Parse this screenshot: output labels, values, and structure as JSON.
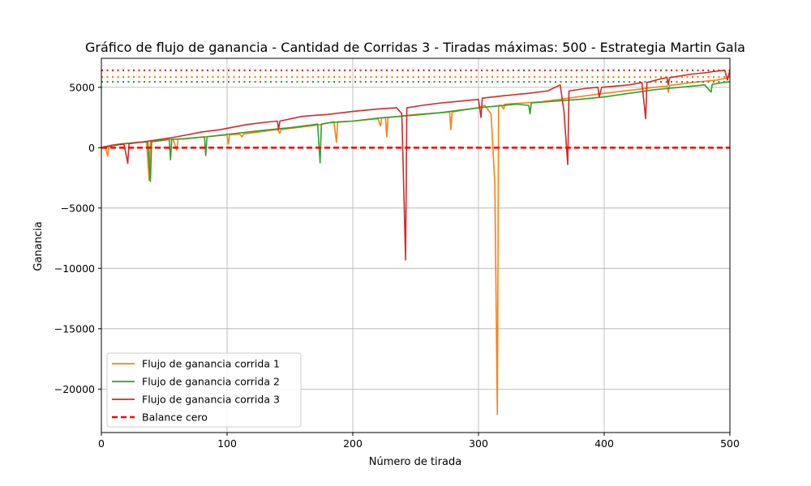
{
  "chart_data": {
    "type": "line",
    "title": "Gráfico de flujo de ganancia - Cantidad de Corridas 3 - Tiradas máximas: 500 - Estrategia Martin Gala",
    "xlabel": "Número de tirada",
    "ylabel": "Ganancia",
    "xlim": [
      0,
      500
    ],
    "ylim": [
      -23600,
      7400
    ],
    "xticks": [
      0,
      100,
      200,
      300,
      400,
      500
    ],
    "xtick_labels": [
      "0",
      "100",
      "200",
      "300",
      "400",
      "500"
    ],
    "yticks": [
      -20000,
      -15000,
      -10000,
      -5000,
      0,
      5000
    ],
    "ytick_labels": [
      "−20000",
      "−15000",
      "−10000",
      "−5000",
      "0",
      "5000"
    ],
    "grid": true,
    "legend_position": "lower-left",
    "series": [
      {
        "name": "Flujo de ganancia corrida 1",
        "color": "#ff7f0e",
        "final_level": 5850,
        "points": [
          [
            0,
            0
          ],
          [
            3,
            100
          ],
          [
            5,
            -700
          ],
          [
            6,
            120
          ],
          [
            15,
            260
          ],
          [
            25,
            400
          ],
          [
            36,
            480
          ],
          [
            38,
            -2700
          ],
          [
            39,
            490
          ],
          [
            50,
            620
          ],
          [
            57,
            700
          ],
          [
            60,
            -200
          ],
          [
            61,
            700
          ],
          [
            80,
            880
          ],
          [
            100,
            1050
          ],
          [
            101,
            300
          ],
          [
            102,
            1060
          ],
          [
            110,
            1120
          ],
          [
            112,
            900
          ],
          [
            113,
            1130
          ],
          [
            140,
            1500
          ],
          [
            142,
            1200
          ],
          [
            143,
            1500
          ],
          [
            174,
            1900
          ],
          [
            185,
            2150
          ],
          [
            187,
            450
          ],
          [
            188,
            2150
          ],
          [
            200,
            2200
          ],
          [
            220,
            2400
          ],
          [
            222,
            1800
          ],
          [
            223,
            2450
          ],
          [
            226,
            2500
          ],
          [
            227,
            900
          ],
          [
            228,
            2500
          ],
          [
            250,
            2750
          ],
          [
            277,
            2950
          ],
          [
            278,
            1500
          ],
          [
            279,
            2950
          ],
          [
            290,
            3150
          ],
          [
            300,
            3300
          ],
          [
            305,
            3500
          ],
          [
            310,
            2800
          ],
          [
            313,
            -3000
          ],
          [
            315,
            -22100
          ],
          [
            316,
            3500
          ],
          [
            318,
            3500
          ],
          [
            320,
            3200
          ],
          [
            321,
            3600
          ],
          [
            350,
            3800
          ],
          [
            400,
            4500
          ],
          [
            440,
            5000
          ],
          [
            450,
            5100
          ],
          [
            451,
            4600
          ],
          [
            452,
            5150
          ],
          [
            470,
            5400
          ],
          [
            480,
            5500
          ],
          [
            490,
            5600
          ],
          [
            498,
            5800
          ],
          [
            500,
            5850
          ]
        ]
      },
      {
        "name": "Flujo de ganancia corrida 2",
        "color": "#2ca02c",
        "final_level": 5450,
        "points": [
          [
            0,
            0
          ],
          [
            8,
            200
          ],
          [
            15,
            300
          ],
          [
            30,
            450
          ],
          [
            37,
            480
          ],
          [
            39,
            -2800
          ],
          [
            40,
            500
          ],
          [
            50,
            620
          ],
          [
            54,
            700
          ],
          [
            55,
            -1000
          ],
          [
            56,
            700
          ],
          [
            65,
            720
          ],
          [
            78,
            850
          ],
          [
            82,
            880
          ],
          [
            83,
            -650
          ],
          [
            84,
            900
          ],
          [
            100,
            1100
          ],
          [
            130,
            1450
          ],
          [
            150,
            1650
          ],
          [
            165,
            1850
          ],
          [
            172,
            1950
          ],
          [
            174,
            -1250
          ],
          [
            175,
            1950
          ],
          [
            180,
            2050
          ],
          [
            200,
            2200
          ],
          [
            220,
            2450
          ],
          [
            250,
            2700
          ],
          [
            270,
            2900
          ],
          [
            300,
            3300
          ],
          [
            330,
            3600
          ],
          [
            340,
            3500
          ],
          [
            341,
            2800
          ],
          [
            342,
            3700
          ],
          [
            360,
            3850
          ],
          [
            380,
            4000
          ],
          [
            400,
            4200
          ],
          [
            420,
            4500
          ],
          [
            440,
            4800
          ],
          [
            460,
            5000
          ],
          [
            470,
            5100
          ],
          [
            480,
            5200
          ],
          [
            485,
            4600
          ],
          [
            486,
            5250
          ],
          [
            495,
            5400
          ],
          [
            500,
            5450
          ]
        ]
      },
      {
        "name": "Flujo de ganancia corrida 3",
        "color": "#d62728",
        "final_level": 6400,
        "points": [
          [
            0,
            0
          ],
          [
            10,
            200
          ],
          [
            18,
            300
          ],
          [
            21,
            -1300
          ],
          [
            22,
            320
          ],
          [
            40,
            580
          ],
          [
            60,
            900
          ],
          [
            80,
            1300
          ],
          [
            95,
            1500
          ],
          [
            100,
            1600
          ],
          [
            115,
            1900
          ],
          [
            130,
            2100
          ],
          [
            140,
            2200
          ],
          [
            141,
            1500
          ],
          [
            142,
            2200
          ],
          [
            160,
            2600
          ],
          [
            180,
            2750
          ],
          [
            200,
            3000
          ],
          [
            220,
            3200
          ],
          [
            235,
            3300
          ],
          [
            239,
            2800
          ],
          [
            242,
            -9300
          ],
          [
            243,
            3300
          ],
          [
            255,
            3500
          ],
          [
            270,
            3700
          ],
          [
            290,
            3900
          ],
          [
            300,
            4000
          ],
          [
            302,
            2500
          ],
          [
            303,
            4100
          ],
          [
            320,
            4300
          ],
          [
            340,
            4500
          ],
          [
            355,
            4700
          ],
          [
            365,
            5200
          ],
          [
            368,
            3000
          ],
          [
            371,
            -1400
          ],
          [
            372,
            4700
          ],
          [
            385,
            4900
          ],
          [
            395,
            5000
          ],
          [
            396,
            4200
          ],
          [
            398,
            5000
          ],
          [
            420,
            5200
          ],
          [
            430,
            5400
          ],
          [
            433,
            2400
          ],
          [
            434,
            5400
          ],
          [
            445,
            5700
          ],
          [
            450,
            5800
          ],
          [
            451,
            5200
          ],
          [
            452,
            5800
          ],
          [
            470,
            6100
          ],
          [
            480,
            6200
          ],
          [
            490,
            6350
          ],
          [
            496,
            6400
          ],
          [
            498,
            5600
          ],
          [
            500,
            6400
          ]
        ]
      },
      {
        "name": "Balance cero",
        "color": "#ff0000",
        "style": "dashed",
        "points": [
          [
            0,
            0
          ],
          [
            500,
            0
          ]
        ]
      }
    ]
  }
}
